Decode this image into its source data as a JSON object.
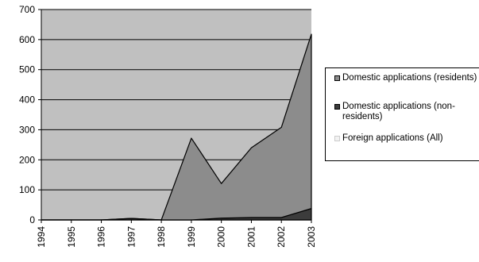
{
  "chart_data": {
    "type": "area",
    "stacked": true,
    "x": [
      "1994",
      "1995",
      "1996",
      "1997",
      "1998",
      "1999",
      "2000",
      "2001",
      "2002",
      "2003"
    ],
    "ylim": [
      0,
      700
    ],
    "yticks": [
      0,
      100,
      200,
      300,
      400,
      500,
      600,
      700
    ],
    "grid": true,
    "legend_position": "right",
    "series": [
      {
        "name": "Foreign applications (All)",
        "color": "#e8e8e8",
        "values": [
          0,
          0,
          0,
          0,
          0,
          0,
          0,
          0,
          0,
          0
        ]
      },
      {
        "name": "Domestic applications (non-residents)",
        "color": "#3c3c3c",
        "values": [
          0,
          0,
          0,
          5,
          0,
          0,
          6,
          8,
          8,
          38
        ]
      },
      {
        "name": "Domestic applications (residents)",
        "color": "#8c8c8c",
        "values": [
          0,
          0,
          0,
          0,
          0,
          272,
          115,
          232,
          300,
          580
        ]
      }
    ],
    "plot_background": "#c0c0c0"
  },
  "legend": {
    "items": [
      {
        "label": "Domestic applications (residents)",
        "color": "#8c8c8c"
      },
      {
        "label": "Domestic applications (non-residents)",
        "color": "#3c3c3c"
      },
      {
        "label": "Foreign applications (All)",
        "color": "#f2f2f2"
      }
    ]
  }
}
